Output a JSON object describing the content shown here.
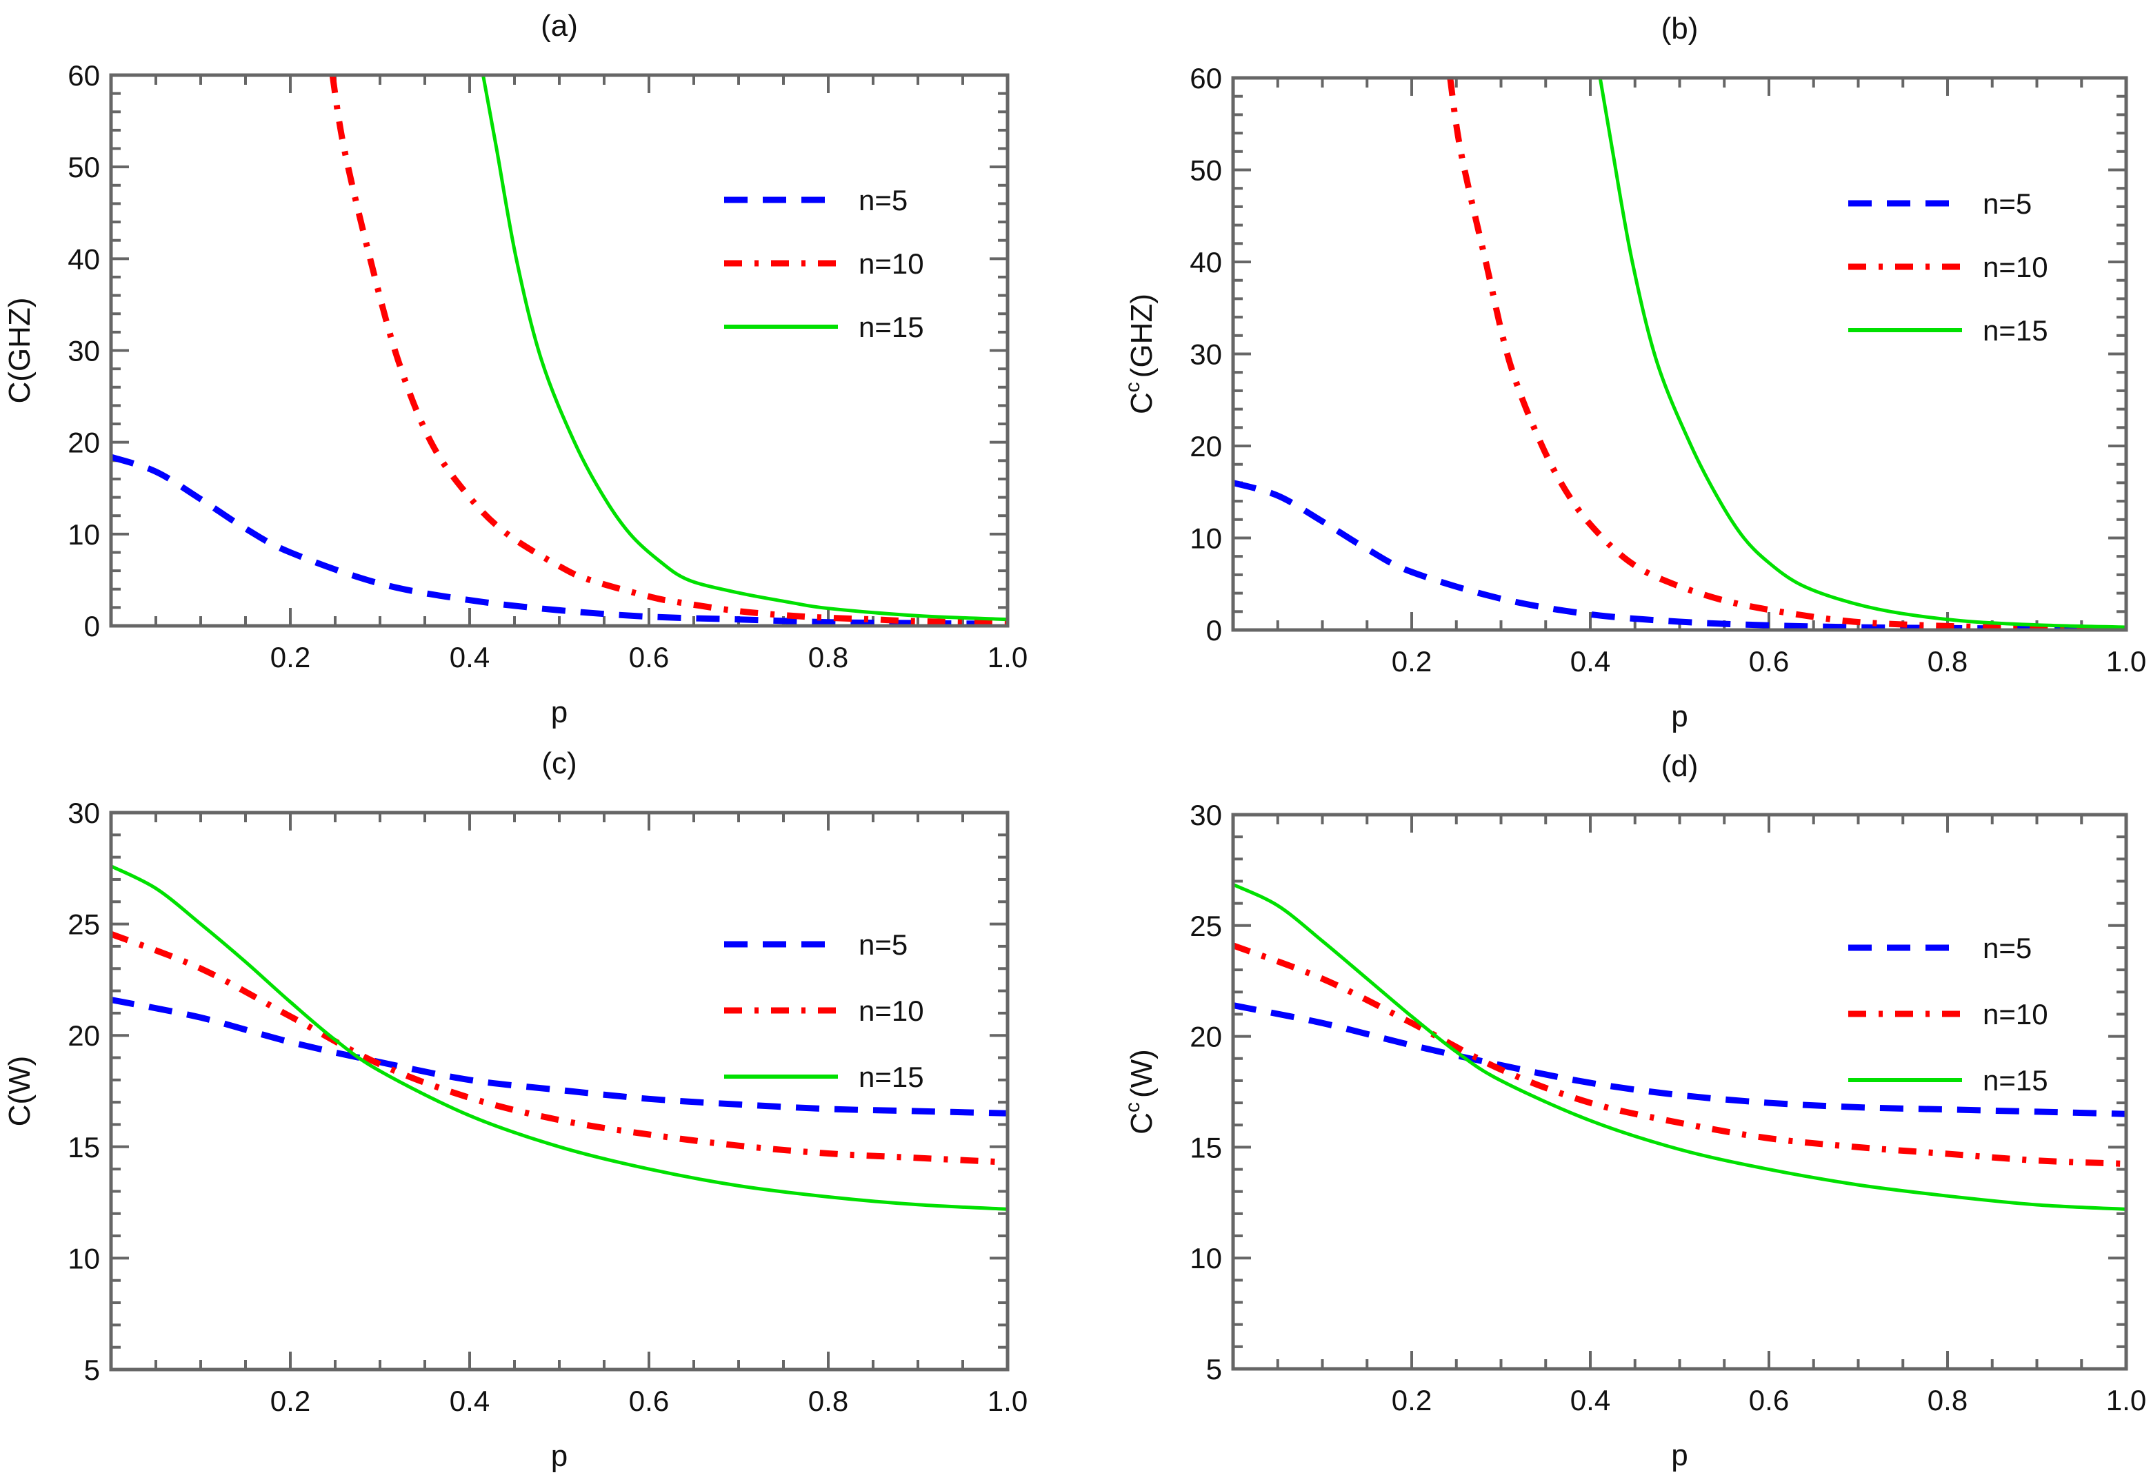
{
  "figure": {
    "legend_entries": [
      "n=5",
      "n=10",
      "n=15"
    ]
  },
  "chart_data": [
    {
      "type": "line",
      "title": "(a)",
      "xlabel": "p",
      "ylabel": "C(GHZ)",
      "ylabel_parts": {
        "base": "C",
        "sup": "",
        "rest": "(GHZ)"
      },
      "xlim": [
        0,
        1
      ],
      "ylim": [
        0,
        60
      ],
      "xticks": [
        0.2,
        0.4,
        0.6,
        0.8,
        1.0
      ],
      "xtick_labels": [
        "0.2",
        "0.4",
        "0.6",
        "0.8",
        "1.0"
      ],
      "xminor_step": 0.05,
      "yticks": [
        0,
        10,
        20,
        30,
        40,
        50,
        60
      ],
      "ytick_labels": [
        "0",
        "10",
        "20",
        "30",
        "40",
        "50",
        "60"
      ],
      "yminor_step": 2,
      "grid": false,
      "legend": "right",
      "series": [
        {
          "name": "n=5",
          "color": "#0000ff",
          "style": "dashed",
          "x": [
            0,
            0.05,
            0.1,
            0.15,
            0.2,
            0.3,
            0.4,
            0.5,
            0.6,
            0.7,
            0.8,
            0.9,
            1.0
          ],
          "y": [
            18.4,
            16.8,
            13.8,
            10.6,
            8.0,
            4.6,
            2.8,
            1.7,
            1.0,
            0.7,
            0.4,
            0.3,
            0.2
          ]
        },
        {
          "name": "n=10",
          "color": "#ff0000",
          "style": "dashdot",
          "x": [
            0.247,
            0.26,
            0.289,
            0.32,
            0.357,
            0.4,
            0.442,
            0.5,
            0.534,
            0.6,
            0.631,
            0.7,
            0.775,
            0.85,
            0.9,
            1.0
          ],
          "y": [
            60,
            52,
            40,
            29,
            20,
            14,
            10,
            6.5,
            5.0,
            3.2,
            2.6,
            1.6,
            1.0,
            0.7,
            0.5,
            0.3
          ]
        },
        {
          "name": "n=15",
          "color": "#00e000",
          "style": "solid",
          "x": [
            0.415,
            0.43,
            0.452,
            0.48,
            0.517,
            0.55,
            0.579,
            0.61,
            0.644,
            0.7,
            0.755,
            0.8,
            0.9,
            1.0
          ],
          "y": [
            60,
            52,
            40,
            29,
            20,
            14,
            10,
            7.2,
            5.0,
            3.6,
            2.6,
            1.9,
            1.1,
            0.7
          ]
        }
      ]
    },
    {
      "type": "line",
      "title": "(b)",
      "xlabel": "p",
      "ylabel": "C^c(GHZ)",
      "ylabel_parts": {
        "base": "C",
        "sup": "c",
        "rest": "(GHZ)"
      },
      "xlim": [
        0,
        1
      ],
      "ylim": [
        0,
        60
      ],
      "xticks": [
        0.2,
        0.4,
        0.6,
        0.8,
        1.0
      ],
      "xtick_labels": [
        "0.2",
        "0.4",
        "0.6",
        "0.8",
        "1.0"
      ],
      "xminor_step": 0.05,
      "yticks": [
        0,
        10,
        20,
        30,
        40,
        50,
        60
      ],
      "ytick_labels": [
        "0",
        "10",
        "20",
        "30",
        "40",
        "50",
        "60"
      ],
      "yminor_step": 2,
      "grid": false,
      "legend": "right",
      "series": [
        {
          "name": "n=5",
          "color": "#0000ff",
          "style": "dashed",
          "x": [
            0,
            0.05,
            0.1,
            0.15,
            0.2,
            0.3,
            0.4,
            0.5,
            0.6,
            0.7,
            0.8,
            0.9,
            1.0
          ],
          "y": [
            16.0,
            14.6,
            11.8,
            8.8,
            6.3,
            3.4,
            1.7,
            0.9,
            0.5,
            0.3,
            0.2,
            0.15,
            0.1
          ]
        },
        {
          "name": "n=10",
          "color": "#ff0000",
          "style": "dashdot",
          "x": [
            0.243,
            0.255,
            0.283,
            0.31,
            0.346,
            0.38,
            0.414,
            0.45,
            0.493,
            0.55,
            0.612,
            0.684,
            0.75,
            0.85,
            1.0
          ],
          "y": [
            60,
            52,
            40,
            29,
            20,
            14,
            10,
            7.0,
            5.0,
            3.2,
            2.0,
            1.0,
            0.6,
            0.3,
            0.1
          ]
        },
        {
          "name": "n=15",
          "color": "#00e000",
          "style": "solid",
          "x": [
            0.411,
            0.425,
            0.447,
            0.475,
            0.513,
            0.545,
            0.572,
            0.6,
            0.634,
            0.68,
            0.736,
            0.815,
            0.9,
            1.0
          ],
          "y": [
            60,
            52,
            40,
            29,
            20,
            14,
            10,
            7.3,
            5.0,
            3.3,
            2.0,
            1.0,
            0.55,
            0.3
          ]
        }
      ]
    },
    {
      "type": "line",
      "title": "(c)",
      "xlabel": "p",
      "ylabel": "C(W)",
      "ylabel_parts": {
        "base": "C",
        "sup": "",
        "rest": "(W)"
      },
      "xlim": [
        0,
        1
      ],
      "ylim": [
        5,
        30
      ],
      "xticks": [
        0.2,
        0.4,
        0.6,
        0.8,
        1.0
      ],
      "xtick_labels": [
        "0.2",
        "0.4",
        "0.6",
        "0.8",
        "1.0"
      ],
      "xminor_step": 0.05,
      "yticks": [
        5,
        10,
        15,
        20,
        25,
        30
      ],
      "ytick_labels": [
        "5",
        "10",
        "15",
        "20",
        "25",
        "30"
      ],
      "yminor_step": 1,
      "grid": false,
      "legend": "right",
      "series": [
        {
          "name": "n=5",
          "color": "#0000ff",
          "style": "dashed",
          "x": [
            0,
            0.1,
            0.2,
            0.3,
            0.4,
            0.5,
            0.6,
            0.7,
            0.8,
            0.9,
            1.0
          ],
          "y": [
            21.6,
            20.8,
            19.7,
            18.8,
            18.0,
            17.55,
            17.15,
            16.9,
            16.7,
            16.6,
            16.5
          ]
        },
        {
          "name": "n=10",
          "color": "#ff0000",
          "style": "dashdot",
          "x": [
            0,
            0.1,
            0.2,
            0.3,
            0.4,
            0.5,
            0.6,
            0.7,
            0.8,
            0.9,
            1.0
          ],
          "y": [
            24.55,
            23.0,
            20.85,
            18.7,
            17.2,
            16.2,
            15.55,
            15.05,
            14.7,
            14.5,
            14.3
          ]
        },
        {
          "name": "n=15",
          "color": "#00e000",
          "style": "solid",
          "x": [
            0,
            0.05,
            0.1,
            0.15,
            0.2,
            0.25,
            0.3,
            0.4,
            0.5,
            0.6,
            0.7,
            0.8,
            0.9,
            1.0
          ],
          "y": [
            27.6,
            26.6,
            25.0,
            23.3,
            21.5,
            19.8,
            18.4,
            16.4,
            15.0,
            14.0,
            13.25,
            12.75,
            12.4,
            12.2
          ]
        }
      ]
    },
    {
      "type": "line",
      "title": "(d)",
      "xlabel": "p",
      "ylabel": "C^c(W)",
      "ylabel_parts": {
        "base": "C",
        "sup": "c",
        "rest": "(W)"
      },
      "xlim": [
        0,
        1
      ],
      "ylim": [
        5,
        30
      ],
      "xticks": [
        0.2,
        0.4,
        0.6,
        0.8,
        1.0
      ],
      "xtick_labels": [
        "0.2",
        "0.4",
        "0.6",
        "0.8",
        "1.0"
      ],
      "xminor_step": 0.05,
      "yticks": [
        5,
        10,
        15,
        20,
        25,
        30
      ],
      "ytick_labels": [
        "5",
        "10",
        "15",
        "20",
        "25",
        "30"
      ],
      "yminor_step": 1,
      "grid": false,
      "legend": "right",
      "series": [
        {
          "name": "n=5",
          "color": "#0000ff",
          "style": "dashed",
          "x": [
            0,
            0.1,
            0.2,
            0.3,
            0.4,
            0.5,
            0.6,
            0.7,
            0.8,
            0.9,
            1.0
          ],
          "y": [
            21.4,
            20.6,
            19.6,
            18.7,
            17.9,
            17.35,
            17.0,
            16.8,
            16.7,
            16.6,
            16.5
          ]
        },
        {
          "name": "n=10",
          "color": "#ff0000",
          "style": "dashdot",
          "x": [
            0,
            0.1,
            0.2,
            0.3,
            0.4,
            0.5,
            0.6,
            0.7,
            0.8,
            0.9,
            1.0
          ],
          "y": [
            24.1,
            22.6,
            20.6,
            18.5,
            17.0,
            16.1,
            15.4,
            15.0,
            14.7,
            14.4,
            14.25
          ]
        },
        {
          "name": "n=15",
          "color": "#00e000",
          "style": "solid",
          "x": [
            0,
            0.05,
            0.1,
            0.15,
            0.2,
            0.25,
            0.3,
            0.4,
            0.5,
            0.6,
            0.7,
            0.8,
            0.9,
            1.0
          ],
          "y": [
            26.85,
            25.9,
            24.3,
            22.6,
            20.9,
            19.3,
            18.0,
            16.2,
            14.9,
            14.0,
            13.3,
            12.8,
            12.4,
            12.2
          ]
        }
      ]
    }
  ]
}
